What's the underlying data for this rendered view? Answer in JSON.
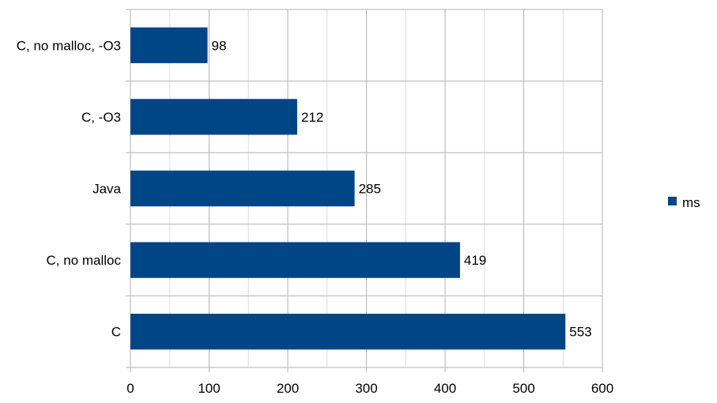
{
  "chart_data": {
    "type": "bar",
    "orientation": "horizontal",
    "categories": [
      "C, no malloc, -O3",
      "C, -O3",
      "Java",
      "C, no malloc",
      "C"
    ],
    "series": [
      {
        "name": "ms",
        "values": [
          98,
          212,
          285,
          419,
          553
        ]
      }
    ],
    "xlim": [
      0,
      600
    ],
    "x_ticks": [
      0,
      100,
      200,
      300,
      400,
      500,
      600
    ],
    "grid": true,
    "legend_position": "right",
    "data_labels": true,
    "colors": {
      "bar": "#004586",
      "grid": "#b3b3b3",
      "text": "#000000"
    }
  }
}
